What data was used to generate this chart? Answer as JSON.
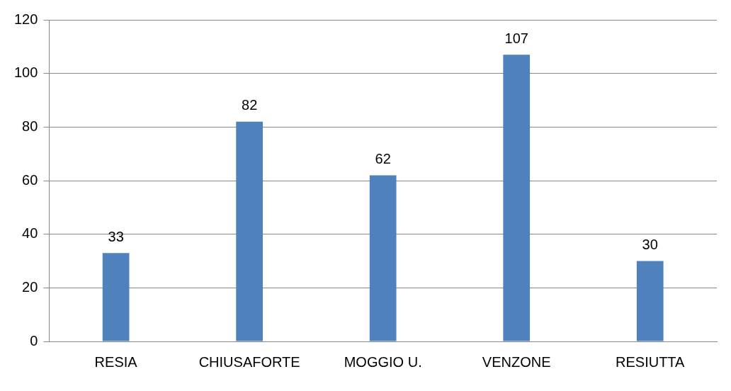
{
  "chart_data": {
    "type": "bar",
    "categories": [
      "RESIA",
      "CHIUSAFORTE",
      "MOGGIO U.",
      "VENZONE",
      "RESIUTTA"
    ],
    "values": [
      33,
      82,
      62,
      107,
      30
    ],
    "color": "#4f81bd",
    "ylim": [
      0,
      120
    ],
    "yticks": [
      0,
      20,
      40,
      60,
      80,
      100,
      120
    ],
    "grid": "y",
    "data_labels": true,
    "legend": false
  }
}
